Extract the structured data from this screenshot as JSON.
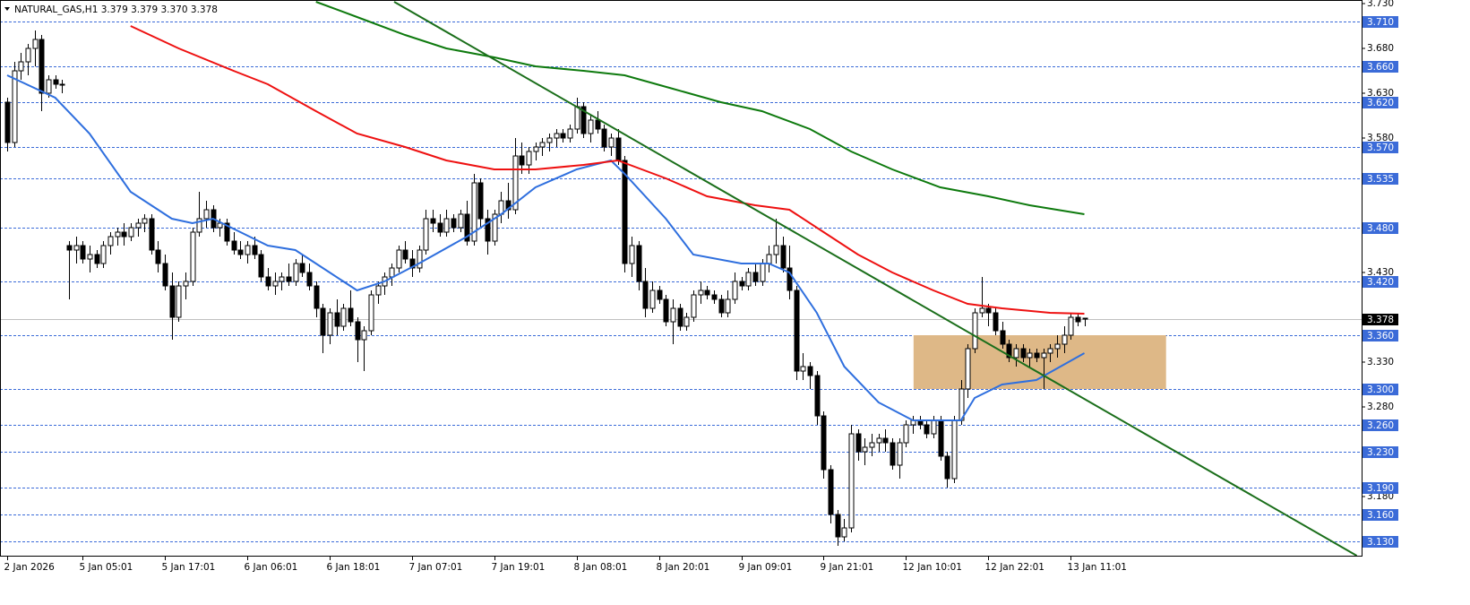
{
  "chart_data": {
    "type": "candlestick",
    "title": "NATURAL_GAS,H1  3.379 3.379 3.370 3.378",
    "categories": [
      "2 Jan 2026",
      null,
      null,
      null,
      null,
      null,
      null,
      null,
      null,
      null,
      null,
      "5 Jan 05:01",
      null,
      null,
      null,
      null,
      null,
      null,
      null,
      null,
      null,
      null,
      null,
      "5 Jan 17:01",
      null,
      null,
      null,
      null,
      null,
      null,
      null,
      null,
      null,
      null,
      null,
      "6 Jan 06:01",
      null,
      null,
      null,
      null,
      null,
      null,
      null,
      null,
      null,
      null,
      null,
      "6 Jan 18:01",
      null,
      null,
      null,
      null,
      null,
      null,
      null,
      null,
      null,
      null,
      null,
      "7 Jan 07:01",
      null,
      null,
      null,
      null,
      null,
      null,
      null,
      null,
      null,
      null,
      null,
      "7 Jan 19:01",
      null,
      null,
      null,
      null,
      null,
      null,
      null,
      null,
      null,
      null,
      null,
      "8 Jan 08:01",
      null,
      null,
      null,
      null,
      null,
      null,
      null,
      null,
      null,
      null,
      null,
      "8 Jan 20:01",
      null,
      null,
      null,
      null,
      null,
      null,
      null,
      null,
      null,
      null,
      null,
      "9 Jan 09:01",
      null,
      null,
      null,
      null,
      null,
      null,
      null,
      null,
      null,
      null,
      null,
      "9 Jan 21:01",
      null,
      null,
      null,
      null,
      null,
      null,
      null,
      null,
      null,
      null,
      null,
      "12 Jan 10:01",
      null,
      null,
      null,
      null,
      null,
      null,
      null,
      null,
      null,
      null,
      null,
      "12 Jan 22:01",
      null,
      null,
      null,
      null,
      null,
      null,
      null,
      null,
      null,
      null,
      null,
      "13 Jan 11:01",
      null,
      null
    ],
    "series": [
      {
        "up_color": "#ffffff",
        "down_color": "#000000",
        "open": [
          3.62,
          3.575,
          3.655,
          3.665,
          3.68,
          3.69,
          3.63,
          3.645,
          3.64,
          3.46,
          3.455,
          3.46,
          3.445,
          3.45,
          3.44,
          3.46,
          3.47,
          3.475,
          3.47,
          3.48,
          3.485,
          3.49,
          3.455,
          3.44,
          3.415,
          3.38,
          3.415,
          3.42,
          3.475,
          3.49,
          3.5,
          3.48,
          3.485,
          3.465,
          3.455,
          3.45,
          3.46,
          3.45,
          3.425,
          3.415,
          3.42,
          3.425,
          3.42,
          3.44,
          3.43,
          3.415,
          3.39,
          3.36,
          3.385,
          3.37,
          3.39,
          3.375,
          3.355,
          3.365,
          3.405,
          3.415,
          3.425,
          3.435,
          3.455,
          3.445,
          3.435,
          3.455,
          3.49,
          3.485,
          3.475,
          3.49,
          3.48,
          3.495,
          3.465,
          3.53,
          3.49,
          3.465,
          3.495,
          3.51,
          3.5,
          3.56,
          3.55,
          3.565,
          3.57,
          3.575,
          3.58,
          3.585,
          3.58,
          3.59,
          3.615,
          3.585,
          3.6,
          3.59,
          3.57,
          3.58,
          3.555,
          3.44,
          3.46,
          3.42,
          3.39,
          3.41,
          3.4,
          3.375,
          3.39,
          3.37,
          3.38,
          3.405,
          3.41,
          3.405,
          3.4,
          3.385,
          3.4,
          3.42,
          3.415,
          3.43,
          3.42,
          3.44,
          3.45,
          3.46,
          3.435,
          3.41,
          3.32,
          3.325,
          3.315,
          3.27,
          3.21,
          3.16,
          3.135,
          3.145,
          3.25,
          3.23,
          3.235,
          3.24,
          3.245,
          3.24,
          3.215,
          3.24,
          3.26,
          3.265,
          3.26,
          3.25,
          3.265,
          3.225,
          3.2,
          3.265,
          3.3,
          3.345,
          3.385,
          3.39,
          3.385,
          3.365,
          3.35,
          3.335,
          3.345,
          3.335,
          3.34,
          3.335,
          3.34,
          3.345,
          3.35,
          3.36,
          3.38,
          3.379
        ],
        "high": [
          3.625,
          3.665,
          3.675,
          3.685,
          3.7,
          3.695,
          3.65,
          3.65,
          3.645,
          3.465,
          3.47,
          3.465,
          3.46,
          3.455,
          3.465,
          3.475,
          3.48,
          3.485,
          3.485,
          3.49,
          3.495,
          3.495,
          3.465,
          3.45,
          3.43,
          3.42,
          3.43,
          3.48,
          3.52,
          3.51,
          3.505,
          3.49,
          3.49,
          3.475,
          3.465,
          3.465,
          3.47,
          3.455,
          3.435,
          3.43,
          3.43,
          3.44,
          3.445,
          3.45,
          3.44,
          3.42,
          3.395,
          3.39,
          3.4,
          3.395,
          3.41,
          3.38,
          3.37,
          3.41,
          3.42,
          3.43,
          3.44,
          3.46,
          3.465,
          3.455,
          3.46,
          3.5,
          3.5,
          3.495,
          3.5,
          3.495,
          3.5,
          3.51,
          3.54,
          3.535,
          3.5,
          3.5,
          3.52,
          3.53,
          3.58,
          3.575,
          3.57,
          3.575,
          3.58,
          3.585,
          3.59,
          3.59,
          3.595,
          3.625,
          3.62,
          3.605,
          3.61,
          3.595,
          3.585,
          3.59,
          3.56,
          3.47,
          3.465,
          3.435,
          3.42,
          3.415,
          3.405,
          3.4,
          3.395,
          3.385,
          3.41,
          3.42,
          3.415,
          3.41,
          3.405,
          3.41,
          3.43,
          3.425,
          3.435,
          3.44,
          3.445,
          3.46,
          3.49,
          3.47,
          3.46,
          3.415,
          3.34,
          3.33,
          3.32,
          3.275,
          3.215,
          3.165,
          3.155,
          3.26,
          3.255,
          3.245,
          3.25,
          3.25,
          3.255,
          3.245,
          3.245,
          3.265,
          3.27,
          3.27,
          3.265,
          3.27,
          3.27,
          3.23,
          3.27,
          3.31,
          3.35,
          3.39,
          3.425,
          3.395,
          3.39,
          3.375,
          3.355,
          3.35,
          3.35,
          3.345,
          3.345,
          3.345,
          3.35,
          3.36,
          3.37,
          3.385,
          3.385,
          3.379
        ],
        "low": [
          3.565,
          3.57,
          3.645,
          3.65,
          3.66,
          3.61,
          3.625,
          3.635,
          3.63,
          3.4,
          3.44,
          3.44,
          3.43,
          3.435,
          3.435,
          3.45,
          3.46,
          3.46,
          3.465,
          3.47,
          3.475,
          3.45,
          3.43,
          3.41,
          3.355,
          3.375,
          3.4,
          3.415,
          3.47,
          3.48,
          3.475,
          3.47,
          3.46,
          3.45,
          3.445,
          3.44,
          3.445,
          3.42,
          3.41,
          3.405,
          3.41,
          3.415,
          3.415,
          3.425,
          3.41,
          3.38,
          3.34,
          3.35,
          3.36,
          3.365,
          3.37,
          3.33,
          3.32,
          3.36,
          3.395,
          3.405,
          3.415,
          3.43,
          3.44,
          3.425,
          3.43,
          3.45,
          3.475,
          3.47,
          3.47,
          3.475,
          3.475,
          3.46,
          3.46,
          3.48,
          3.45,
          3.46,
          3.485,
          3.49,
          3.495,
          3.54,
          3.54,
          3.555,
          3.56,
          3.565,
          3.57,
          3.575,
          3.575,
          3.585,
          3.58,
          3.575,
          3.585,
          3.565,
          3.56,
          3.55,
          3.43,
          3.425,
          3.41,
          3.38,
          3.385,
          3.395,
          3.37,
          3.35,
          3.365,
          3.365,
          3.375,
          3.395,
          3.4,
          3.395,
          3.38,
          3.38,
          3.395,
          3.41,
          3.41,
          3.415,
          3.415,
          3.43,
          3.44,
          3.43,
          3.4,
          3.31,
          3.31,
          3.3,
          3.26,
          3.2,
          3.15,
          3.125,
          3.13,
          3.14,
          3.22,
          3.215,
          3.225,
          3.23,
          3.23,
          3.21,
          3.2,
          3.235,
          3.25,
          3.255,
          3.245,
          3.245,
          3.22,
          3.19,
          3.195,
          3.26,
          3.29,
          3.34,
          3.38,
          3.37,
          3.36,
          3.345,
          3.33,
          3.325,
          3.33,
          3.325,
          3.33,
          3.3,
          3.33,
          3.335,
          3.34,
          3.355,
          3.37,
          3.37
        ],
        "close": [
          3.575,
          3.655,
          3.665,
          3.68,
          3.69,
          3.63,
          3.645,
          3.64,
          3.64,
          3.455,
          3.46,
          3.445,
          3.45,
          3.44,
          3.46,
          3.47,
          3.475,
          3.47,
          3.48,
          3.485,
          3.49,
          3.455,
          3.44,
          3.415,
          3.38,
          3.415,
          3.42,
          3.475,
          3.49,
          3.5,
          3.48,
          3.485,
          3.465,
          3.455,
          3.45,
          3.46,
          3.45,
          3.425,
          3.415,
          3.42,
          3.425,
          3.42,
          3.44,
          3.43,
          3.415,
          3.39,
          3.36,
          3.385,
          3.37,
          3.39,
          3.375,
          3.355,
          3.365,
          3.405,
          3.415,
          3.425,
          3.435,
          3.455,
          3.445,
          3.435,
          3.455,
          3.49,
          3.485,
          3.475,
          3.49,
          3.48,
          3.495,
          3.465,
          3.53,
          3.49,
          3.465,
          3.495,
          3.51,
          3.5,
          3.56,
          3.55,
          3.565,
          3.57,
          3.575,
          3.58,
          3.585,
          3.58,
          3.59,
          3.615,
          3.585,
          3.6,
          3.59,
          3.57,
          3.58,
          3.555,
          3.44,
          3.46,
          3.42,
          3.39,
          3.41,
          3.4,
          3.375,
          3.39,
          3.37,
          3.38,
          3.405,
          3.41,
          3.405,
          3.4,
          3.385,
          3.4,
          3.42,
          3.415,
          3.43,
          3.42,
          3.44,
          3.45,
          3.46,
          3.435,
          3.41,
          3.32,
          3.325,
          3.315,
          3.27,
          3.21,
          3.16,
          3.135,
          3.145,
          3.25,
          3.23,
          3.235,
          3.24,
          3.245,
          3.24,
          3.215,
          3.24,
          3.26,
          3.265,
          3.26,
          3.25,
          3.265,
          3.225,
          3.2,
          3.265,
          3.3,
          3.345,
          3.385,
          3.39,
          3.385,
          3.365,
          3.35,
          3.335,
          3.345,
          3.335,
          3.34,
          3.335,
          3.34,
          3.345,
          3.35,
          3.36,
          3.38,
          3.375,
          3.378
        ]
      }
    ],
    "lines": [
      {
        "color": "#2f6fde",
        "x": [
          0,
          7,
          12,
          18,
          24,
          27,
          30,
          34,
          38,
          42,
          47,
          51,
          55,
          60,
          67,
          72,
          77,
          83,
          88,
          90,
          96,
          100,
          107,
          111,
          114,
          118,
          122,
          127,
          132,
          136,
          139,
          141,
          145,
          150,
          157
        ],
        "values": [
          3.65,
          3.625,
          3.585,
          3.52,
          3.49,
          3.485,
          3.49,
          3.475,
          3.46,
          3.455,
          3.43,
          3.41,
          3.42,
          3.44,
          3.47,
          3.495,
          3.525,
          3.545,
          3.555,
          3.54,
          3.49,
          3.45,
          3.44,
          3.44,
          3.43,
          3.385,
          3.325,
          3.285,
          3.265,
          3.265,
          3.265,
          3.29,
          3.305,
          3.31,
          3.34
        ]
      },
      {
        "color": "#ee1111",
        "x": [
          18,
          25,
          33,
          38,
          45,
          51,
          58,
          64,
          71,
          77,
          84,
          89,
          96,
          102,
          109,
          114,
          119,
          124,
          129,
          135,
          140,
          145,
          152,
          157
        ],
        "values": [
          3.705,
          3.68,
          3.655,
          3.64,
          3.61,
          3.585,
          3.57,
          3.555,
          3.545,
          3.545,
          3.55,
          3.555,
          3.535,
          3.515,
          3.505,
          3.5,
          3.475,
          3.45,
          3.43,
          3.41,
          3.395,
          3.39,
          3.385,
          3.384
        ]
      },
      {
        "color": "#0e7a0e",
        "x": [
          45,
          51,
          58,
          64,
          71,
          77,
          84,
          90,
          97,
          104,
          110,
          117,
          123,
          129,
          136,
          143,
          149,
          157
        ],
        "values": [
          3.732,
          3.715,
          3.695,
          3.68,
          3.67,
          3.66,
          3.655,
          3.65,
          3.635,
          3.62,
          3.61,
          3.59,
          3.565,
          3.545,
          3.525,
          3.515,
          3.505,
          3.495
        ]
      },
      {
        "color": "#1a6e1a",
        "x": [
          56.4,
          196.7
        ],
        "values": [
          3.732,
          3.114
        ]
      }
    ],
    "zone": {
      "color": "#deb887",
      "x": [
        132.1,
        168.9
      ],
      "y": [
        3.3,
        3.36
      ]
    },
    "levels": [
      {
        "value": 3.71,
        "label": "3.710"
      },
      {
        "value": 3.66,
        "label": "3.660"
      },
      {
        "value": 3.62,
        "label": "3.620"
      },
      {
        "value": 3.57,
        "label": "3.570"
      },
      {
        "value": 3.535,
        "label": "3.535"
      },
      {
        "value": 3.48,
        "label": "3.480"
      },
      {
        "value": 3.42,
        "label": "3.420"
      },
      {
        "value": 3.36,
        "label": "3.360"
      },
      {
        "value": 3.3,
        "label": "3.300"
      },
      {
        "value": 3.26,
        "label": "3.260"
      },
      {
        "value": 3.23,
        "label": "3.230"
      },
      {
        "value": 3.19,
        "label": "3.190"
      },
      {
        "value": 3.16,
        "label": "3.160"
      },
      {
        "value": 3.13,
        "label": "3.130"
      }
    ],
    "level_color": "#3b6bd8",
    "last_price": {
      "value": 3.378,
      "label": "3.378"
    },
    "xlim": [
      -1.04,
      197.4
    ],
    "ylim": [
      3.114,
      3.734
    ],
    "yticks": [
      {
        "value": 3.73,
        "label": "3.730"
      },
      {
        "value": 3.68,
        "label": "3.680"
      },
      {
        "value": 3.63,
        "label": "3.630"
      },
      {
        "value": 3.58,
        "label": "3.580"
      },
      {
        "value": 3.43,
        "label": "3.430"
      },
      {
        "value": 3.33,
        "label": "3.330"
      },
      {
        "value": 3.28,
        "label": "3.280"
      },
      {
        "value": 3.18,
        "label": "3.180"
      }
    ]
  }
}
